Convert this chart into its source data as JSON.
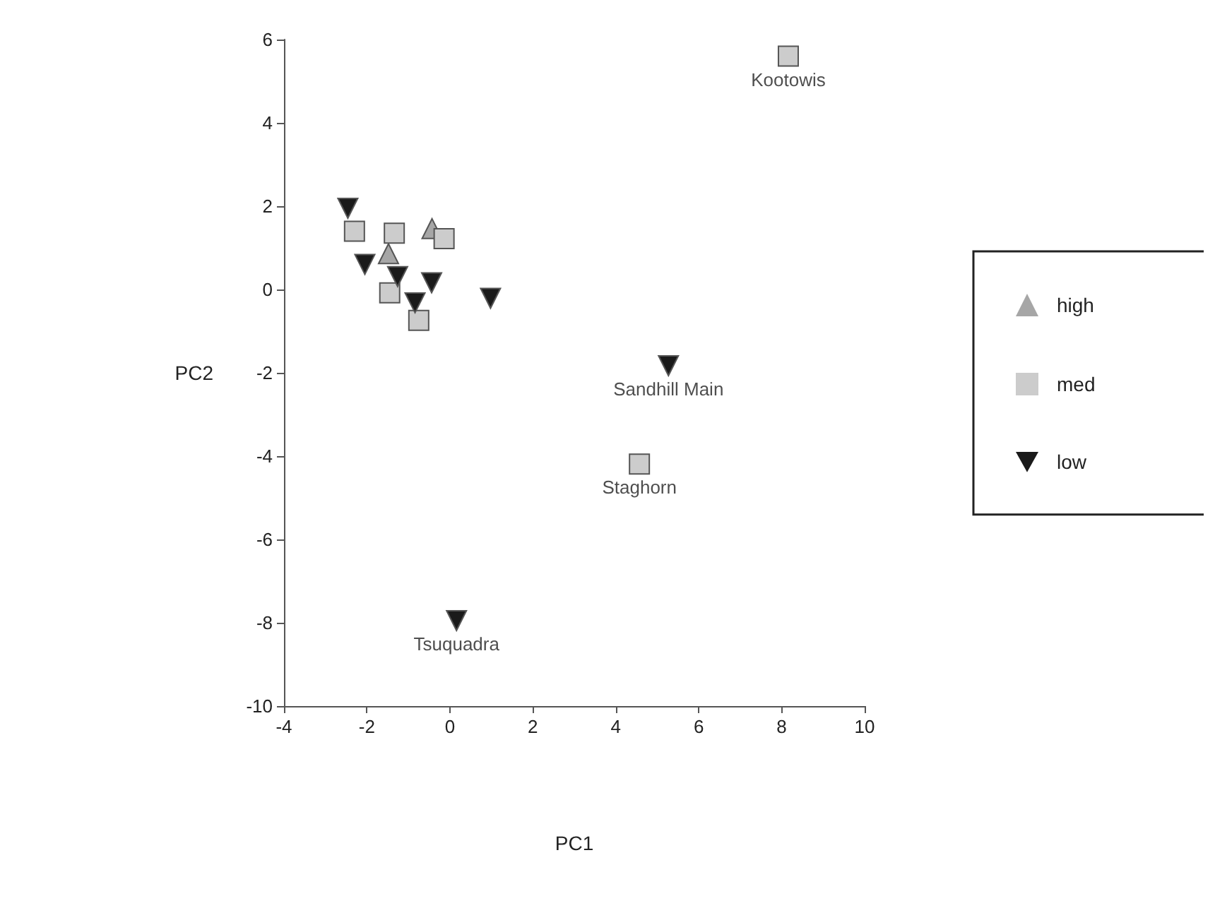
{
  "chart_data": {
    "type": "scatter",
    "xlabel": "PC1",
    "ylabel": "PC2",
    "xlim": [
      -4,
      10
    ],
    "ylim": [
      -10,
      6
    ],
    "xticks": [
      -4,
      -2,
      0,
      2,
      4,
      6,
      8,
      10
    ],
    "yticks": [
      -10,
      -8,
      -6,
      -4,
      -2,
      0,
      2,
      4,
      6
    ],
    "grid": false,
    "legend": "right",
    "series": [
      {
        "name": "high",
        "color": "#a6a6a6",
        "marker": "triangle",
        "x": [
          -0.43,
          -1.48
        ],
        "values": [
          1.46,
          0.86
        ]
      },
      {
        "name": "med",
        "color": "#cccccc",
        "marker": "square",
        "x": [
          8.16,
          4.57,
          -2.3,
          -1.34,
          -0.14,
          -1.45,
          -0.75
        ],
        "values": [
          5.6,
          -4.19,
          1.4,
          1.35,
          1.22,
          -0.08,
          -0.74
        ]
      },
      {
        "name": "low",
        "color": "#1a1a1a",
        "marker": "triangle-down",
        "x": [
          5.27,
          0.16,
          -2.46,
          -2.05,
          -1.26,
          -0.44,
          0.98,
          -0.84
        ],
        "values": [
          -1.83,
          -7.95,
          1.95,
          0.6,
          0.31,
          0.16,
          -0.21,
          -0.32
        ]
      }
    ],
    "annotations": [
      {
        "text": "Kootowis",
        "x": 8.16,
        "y": 5.6
      },
      {
        "text": "Sandhill Main",
        "x": 5.27,
        "y": -1.83
      },
      {
        "text": "Staghorn",
        "x": 4.57,
        "y": -4.19
      },
      {
        "text": "Tsuquadra",
        "x": 0.16,
        "y": -7.95
      }
    ]
  }
}
